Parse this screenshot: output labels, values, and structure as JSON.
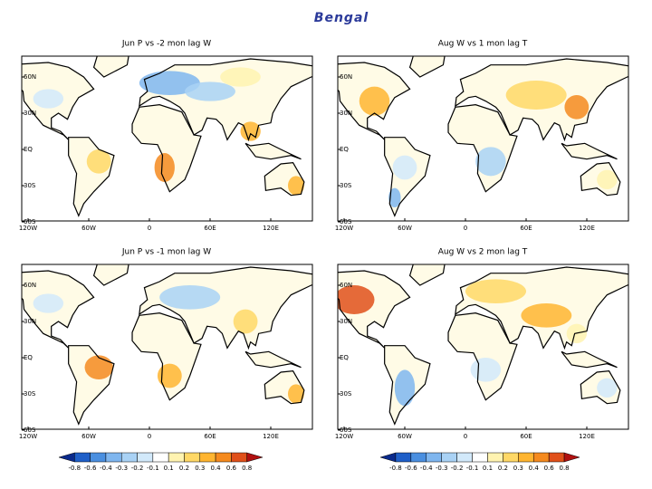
{
  "title": "Bengal",
  "panels": [
    {
      "title": "Jun P vs -2 mon lag W",
      "lat_labels": [
        "60N",
        "30N",
        "EQ",
        "30S",
        "60S"
      ],
      "lon_labels": [
        "120W",
        "60W",
        "0",
        "60E",
        "120E"
      ]
    },
    {
      "title": "Aug W vs 1 mon lag T",
      "lat_labels": [
        "60N",
        "30N",
        "EQ",
        "30S",
        "60S"
      ],
      "lon_labels": [
        "120W",
        "60W",
        "0",
        "60E",
        "120E"
      ]
    },
    {
      "title": "Jun P vs -1 mon lag W",
      "lat_labels": [
        "60N",
        "30N",
        "EQ",
        "30S",
        "60S"
      ],
      "lon_labels": [
        "120W",
        "60W",
        "0",
        "60E",
        "120E"
      ]
    },
    {
      "title": "Aug W vs 2 mon lag T",
      "lat_labels": [
        "60N",
        "30N",
        "EQ",
        "30S",
        "60S"
      ],
      "lon_labels": [
        "120W",
        "60W",
        "0",
        "60E",
        "120E"
      ]
    }
  ],
  "colorbars": [
    {
      "labels": [
        "-0.8",
        "-0.6",
        "-0.4",
        "-0.3",
        "-0.2",
        "-0.1",
        "0.1",
        "0.2",
        "0.3",
        "0.4",
        "0.6",
        "0.8"
      ],
      "colors": [
        "#0a2a8c",
        "#1f5fc8",
        "#4a8fe0",
        "#7fb6ef",
        "#a9d2f5",
        "#d2e9fa",
        "#ffffff",
        "#fff3b0",
        "#ffd866",
        "#ffb530",
        "#f58a1e",
        "#e0501a",
        "#b01010"
      ]
    },
    {
      "labels": [
        "-0.8",
        "-0.6",
        "-0.4",
        "-0.3",
        "-0.2",
        "-0.1",
        "0.1",
        "0.2",
        "0.3",
        "0.4",
        "0.6",
        "0.8"
      ],
      "colors": [
        "#0a2a8c",
        "#1f5fc8",
        "#4a8fe0",
        "#7fb6ef",
        "#a9d2f5",
        "#d2e9fa",
        "#ffffff",
        "#fff3b0",
        "#ffd866",
        "#ffb530",
        "#f58a1e",
        "#e0501a",
        "#b01010"
      ]
    }
  ]
}
